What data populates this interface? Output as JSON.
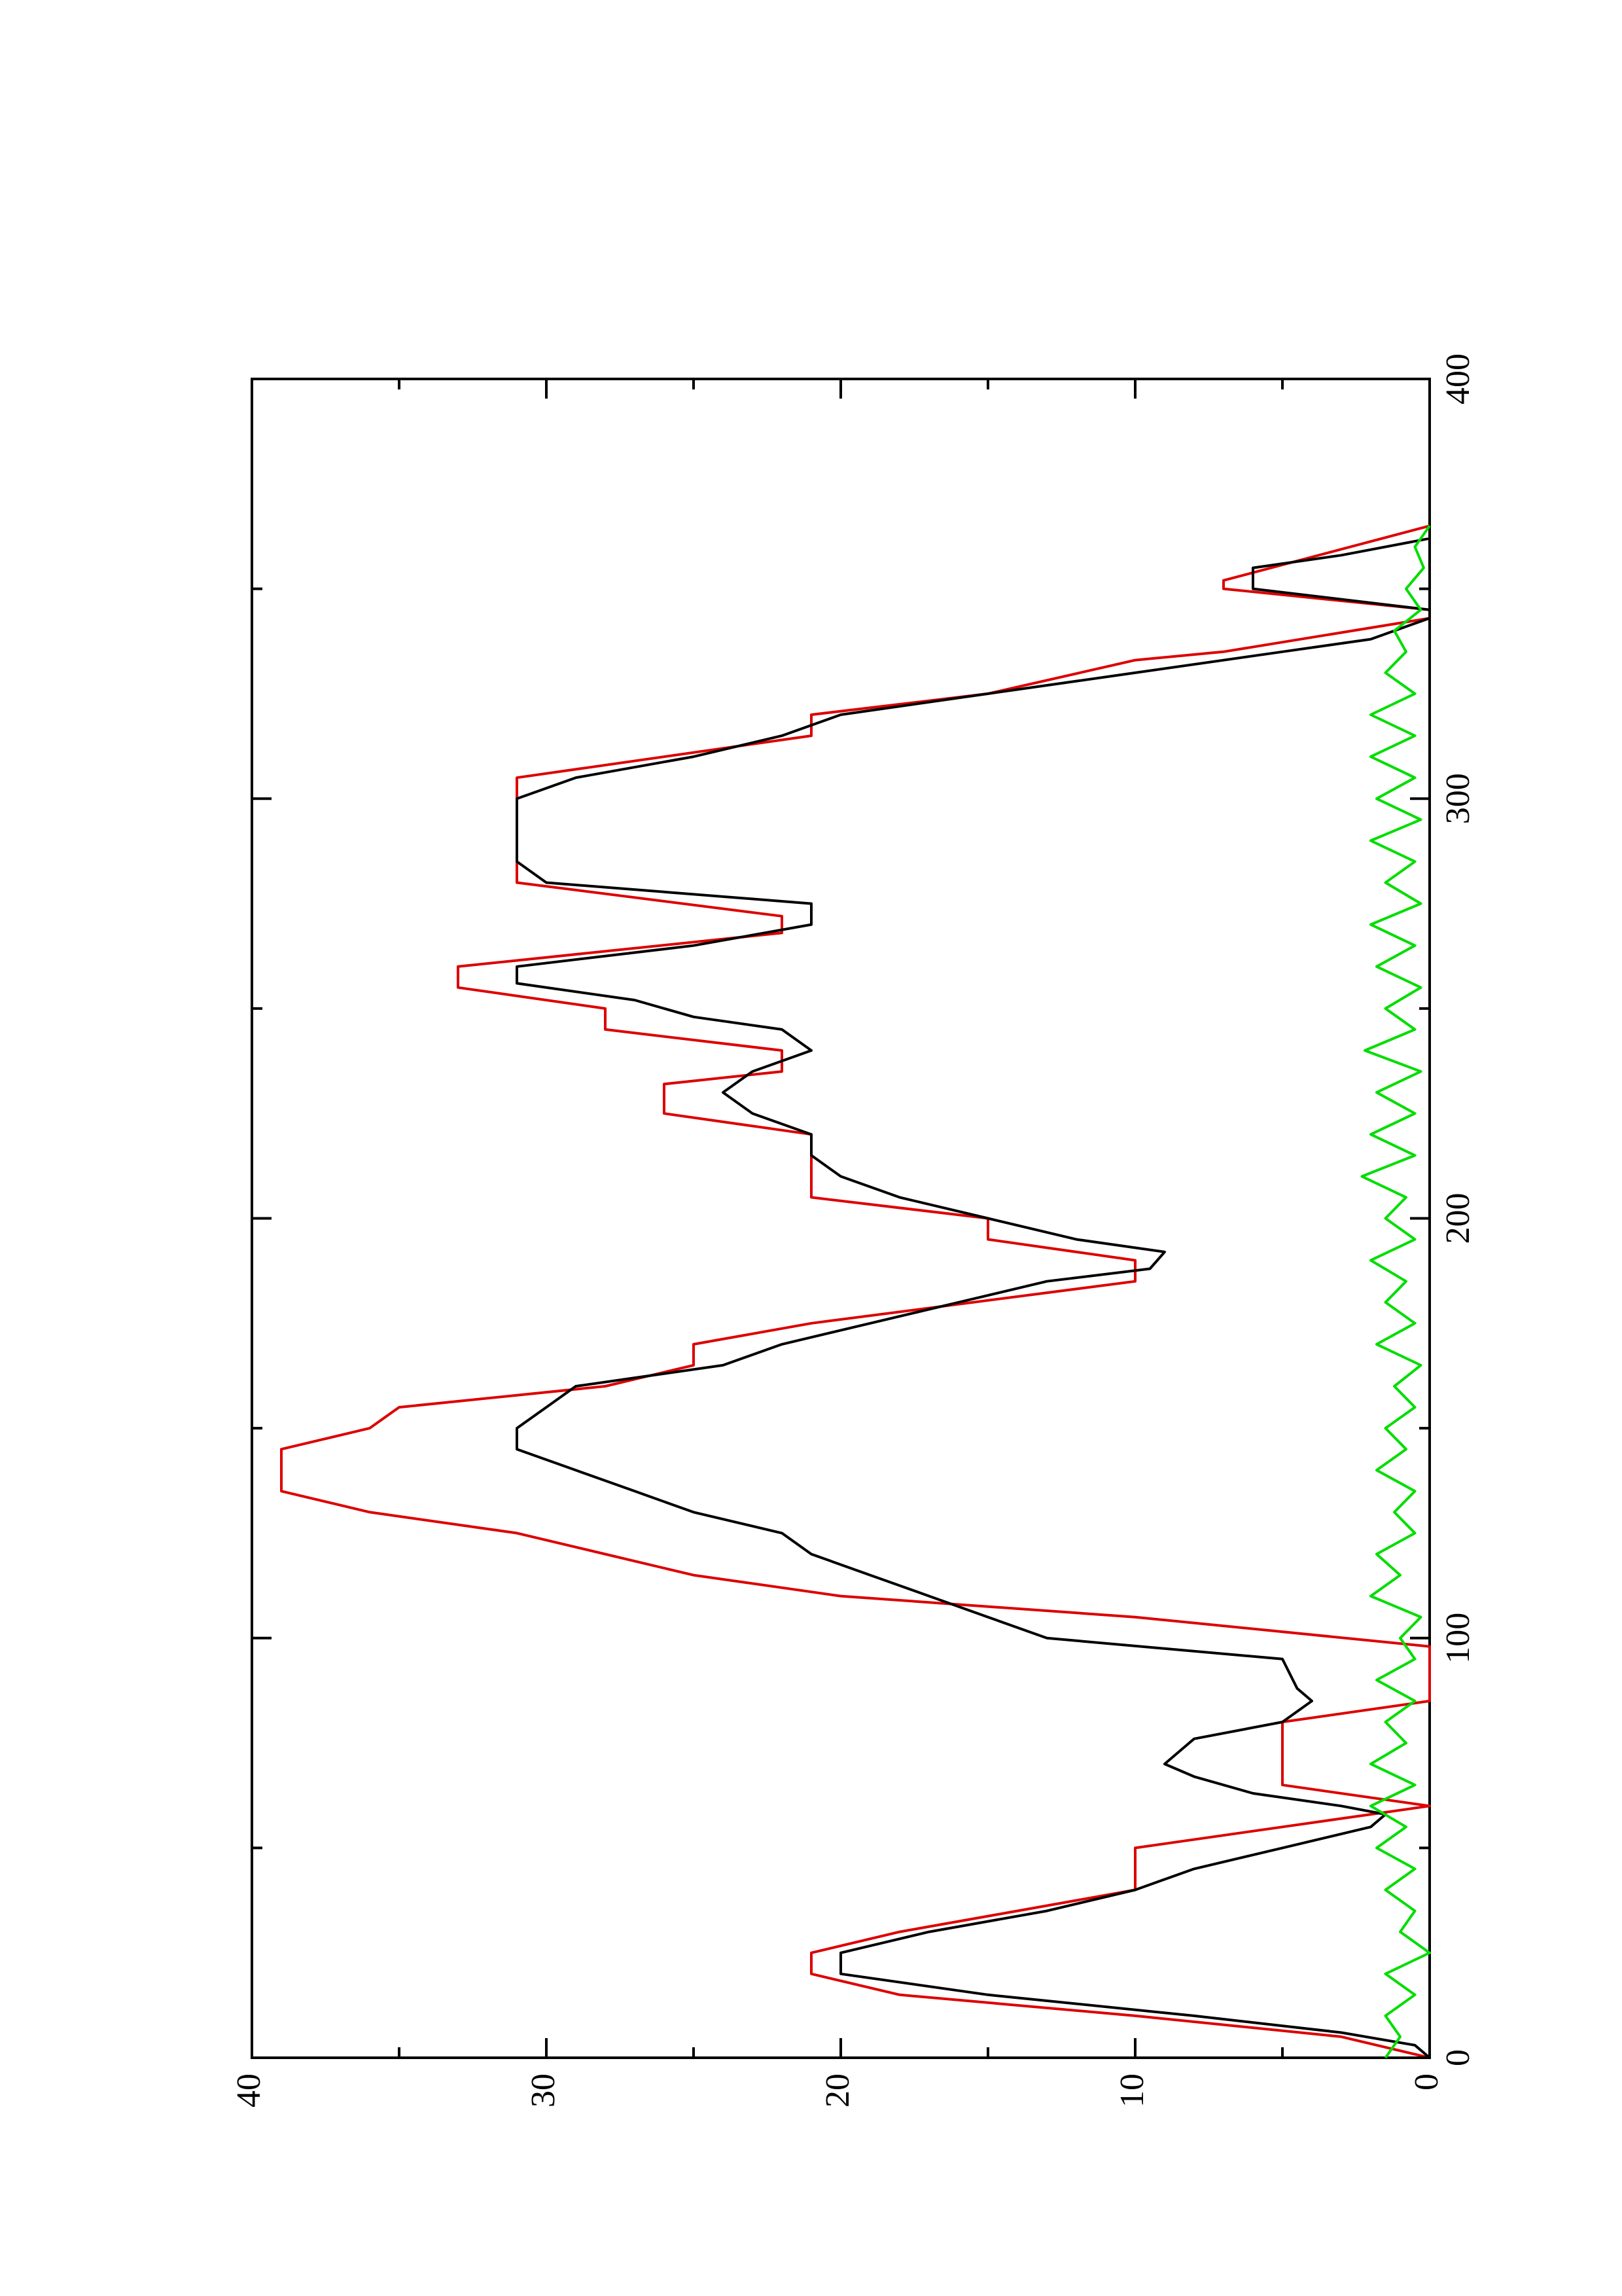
{
  "chart_data": {
    "type": "line",
    "orientation": "rotated-90-ccw",
    "title": "",
    "xlabel": "",
    "ylabel": "",
    "xlim": [
      0,
      400
    ],
    "ylim": [
      0,
      40
    ],
    "x_ticks": [
      "0",
      "100",
      "200",
      "300",
      "400"
    ],
    "y_ticks": [
      "0",
      "10",
      "20",
      "30",
      "40"
    ],
    "grid": false,
    "legend": "none",
    "series": [
      {
        "color": "#dd0000",
        "points": [
          [
            0,
            0
          ],
          [
            5,
            3
          ],
          [
            10,
            10
          ],
          [
            15,
            18
          ],
          [
            20,
            21
          ],
          [
            25,
            21
          ],
          [
            30,
            18
          ],
          [
            35,
            14
          ],
          [
            40,
            10
          ],
          [
            50,
            10
          ],
          [
            55,
            5
          ],
          [
            60,
            0
          ],
          [
            65,
            5
          ],
          [
            80,
            5
          ],
          [
            85,
            0
          ],
          [
            98,
            0
          ],
          [
            105,
            10
          ],
          [
            110,
            20
          ],
          [
            115,
            25
          ],
          [
            120,
            28
          ],
          [
            125,
            31
          ],
          [
            130,
            36
          ],
          [
            135,
            39
          ],
          [
            145,
            39
          ],
          [
            150,
            36
          ],
          [
            155,
            35
          ],
          [
            160,
            28
          ],
          [
            165,
            25
          ],
          [
            170,
            25
          ],
          [
            175,
            21
          ],
          [
            185,
            10
          ],
          [
            190,
            10
          ],
          [
            195,
            15
          ],
          [
            200,
            15
          ],
          [
            205,
            21
          ],
          [
            220,
            21
          ],
          [
            225,
            26
          ],
          [
            232,
            26
          ],
          [
            235,
            22
          ],
          [
            240,
            22
          ],
          [
            245,
            28
          ],
          [
            250,
            28
          ],
          [
            255,
            33
          ],
          [
            260,
            33
          ],
          [
            268,
            22
          ],
          [
            272,
            22
          ],
          [
            280,
            31
          ],
          [
            290,
            31
          ],
          [
            295,
            31
          ],
          [
            305,
            31
          ],
          [
            315,
            21
          ],
          [
            320,
            21
          ],
          [
            325,
            15
          ],
          [
            333,
            10
          ],
          [
            335,
            7
          ],
          [
            343,
            0
          ],
          [
            345,
            0
          ],
          [
            350,
            7
          ],
          [
            352,
            7
          ],
          [
            365,
            0
          ]
        ]
      },
      {
        "color": "#000000",
        "points": [
          [
            0,
            0
          ],
          [
            3,
            0.5
          ],
          [
            6,
            3
          ],
          [
            10,
            8
          ],
          [
            15,
            15
          ],
          [
            20,
            20
          ],
          [
            25,
            20
          ],
          [
            30,
            17
          ],
          [
            35,
            13
          ],
          [
            40,
            10
          ],
          [
            45,
            8
          ],
          [
            50,
            5
          ],
          [
            55,
            2
          ],
          [
            58,
            1.5
          ],
          [
            60,
            3
          ],
          [
            63,
            6
          ],
          [
            67,
            8
          ],
          [
            70,
            9
          ],
          [
            73,
            8.5
          ],
          [
            76,
            8
          ],
          [
            80,
            5
          ],
          [
            85,
            4
          ],
          [
            88,
            4.5
          ],
          [
            95,
            5
          ],
          [
            100,
            13
          ],
          [
            105,
            15
          ],
          [
            110,
            17
          ],
          [
            115,
            19
          ],
          [
            120,
            21
          ],
          [
            125,
            22
          ],
          [
            130,
            25
          ],
          [
            135,
            27
          ],
          [
            140,
            29
          ],
          [
            145,
            31
          ],
          [
            150,
            31
          ],
          [
            155,
            30
          ],
          [
            160,
            29
          ],
          [
            165,
            24
          ],
          [
            170,
            22
          ],
          [
            175,
            19
          ],
          [
            180,
            16
          ],
          [
            185,
            13
          ],
          [
            188,
            9.5
          ],
          [
            192,
            9
          ],
          [
            195,
            12
          ],
          [
            200,
            15
          ],
          [
            205,
            18
          ],
          [
            210,
            20
          ],
          [
            215,
            21
          ],
          [
            220,
            21
          ],
          [
            225,
            23
          ],
          [
            230,
            24
          ],
          [
            235,
            23
          ],
          [
            240,
            21
          ],
          [
            245,
            22
          ],
          [
            248,
            25
          ],
          [
            252,
            27
          ],
          [
            256,
            31
          ],
          [
            260,
            31
          ],
          [
            265,
            25
          ],
          [
            270,
            21
          ],
          [
            275,
            21
          ],
          [
            280,
            30
          ],
          [
            285,
            31
          ],
          [
            290,
            31
          ],
          [
            295,
            31
          ],
          [
            300,
            31
          ],
          [
            305,
            29
          ],
          [
            310,
            25
          ],
          [
            315,
            22
          ],
          [
            320,
            20
          ],
          [
            325,
            15
          ],
          [
            330,
            10
          ],
          [
            335,
            5
          ],
          [
            338,
            2
          ],
          [
            343,
            0
          ],
          [
            345,
            0
          ],
          [
            350,
            6
          ],
          [
            355,
            6
          ],
          [
            358,
            3
          ],
          [
            362,
            0
          ],
          [
            365,
            0
          ]
        ]
      },
      {
        "color": "#00dd00",
        "points": [
          [
            0,
            1.5
          ],
          [
            5,
            1
          ],
          [
            10,
            1.5
          ],
          [
            15,
            0.5
          ],
          [
            20,
            1.5
          ],
          [
            25,
            0
          ],
          [
            30,
            1
          ],
          [
            35,
            0.5
          ],
          [
            40,
            1.5
          ],
          [
            45,
            0.5
          ],
          [
            50,
            1.8
          ],
          [
            55,
            0.8
          ],
          [
            60,
            2
          ],
          [
            65,
            0.5
          ],
          [
            70,
            2
          ],
          [
            75,
            0.8
          ],
          [
            80,
            1.5
          ],
          [
            85,
            0.5
          ],
          [
            90,
            1.8
          ],
          [
            95,
            0.5
          ],
          [
            100,
            1
          ],
          [
            105,
            0.3
          ],
          [
            110,
            2
          ],
          [
            115,
            1
          ],
          [
            120,
            1.8
          ],
          [
            125,
            0.5
          ],
          [
            130,
            1.2
          ],
          [
            135,
            0.5
          ],
          [
            140,
            1.8
          ],
          [
            145,
            0.8
          ],
          [
            150,
            1.5
          ],
          [
            155,
            0.5
          ],
          [
            160,
            1.2
          ],
          [
            165,
            0.3
          ],
          [
            170,
            1.8
          ],
          [
            175,
            0.5
          ],
          [
            180,
            1.5
          ],
          [
            185,
            0.8
          ],
          [
            190,
            2
          ],
          [
            195,
            0.5
          ],
          [
            200,
            1.5
          ],
          [
            205,
            0.8
          ],
          [
            210,
            2.3
          ],
          [
            215,
            0.5
          ],
          [
            220,
            2
          ],
          [
            225,
            0.5
          ],
          [
            230,
            1.8
          ],
          [
            235,
            0.3
          ],
          [
            240,
            2.2
          ],
          [
            245,
            0.5
          ],
          [
            250,
            1.5
          ],
          [
            255,
            0.3
          ],
          [
            260,
            1.8
          ],
          [
            265,
            0.5
          ],
          [
            270,
            2
          ],
          [
            275,
            0.3
          ],
          [
            280,
            1.5
          ],
          [
            285,
            0.5
          ],
          [
            290,
            2
          ],
          [
            295,
            0.3
          ],
          [
            300,
            1.8
          ],
          [
            305,
            0.5
          ],
          [
            310,
            2
          ],
          [
            315,
            0.5
          ],
          [
            320,
            2
          ],
          [
            325,
            0.5
          ],
          [
            330,
            1.5
          ],
          [
            335,
            0.8
          ],
          [
            340,
            1.2
          ],
          [
            345,
            0.3
          ],
          [
            350,
            0.8
          ],
          [
            355,
            0.2
          ],
          [
            360,
            0.5
          ],
          [
            365,
            0
          ]
        ]
      }
    ]
  }
}
